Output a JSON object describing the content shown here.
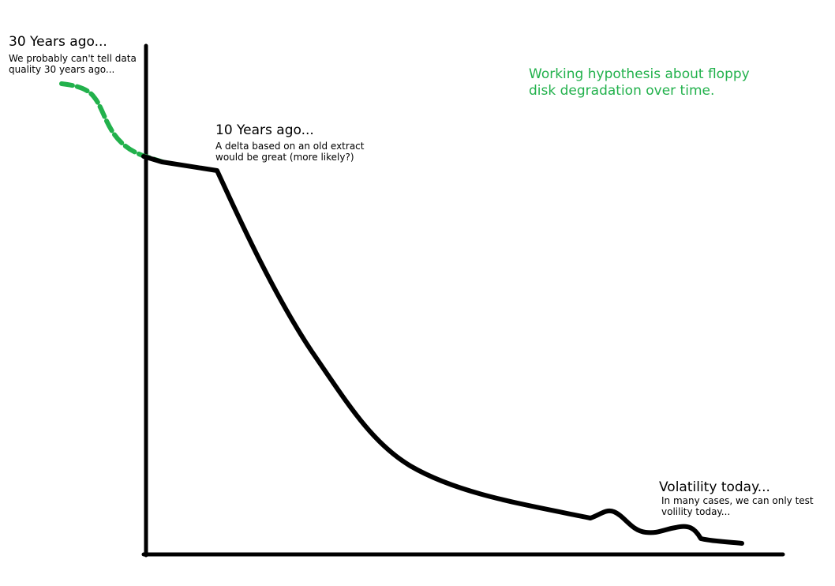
{
  "annotations": {
    "thirty_years": {
      "heading": "30 Years ago...",
      "note_line1": "We probably can't tell data",
      "note_line2": "quality 30 years ago..."
    },
    "ten_years": {
      "heading": "10 Years ago...",
      "note_line1": "A delta based on an old extract",
      "note_line2": "would be great (more likely?)"
    },
    "today": {
      "heading": "Volatility today...",
      "note_line1": "In many cases, we can only test",
      "note_line2": "volility today..."
    }
  },
  "hypothesis": {
    "line1": "Working hypothesis about floppy",
    "line2": "disk degradation over time."
  },
  "colors": {
    "ink": "#000000",
    "speculative": "#22b14c"
  }
}
